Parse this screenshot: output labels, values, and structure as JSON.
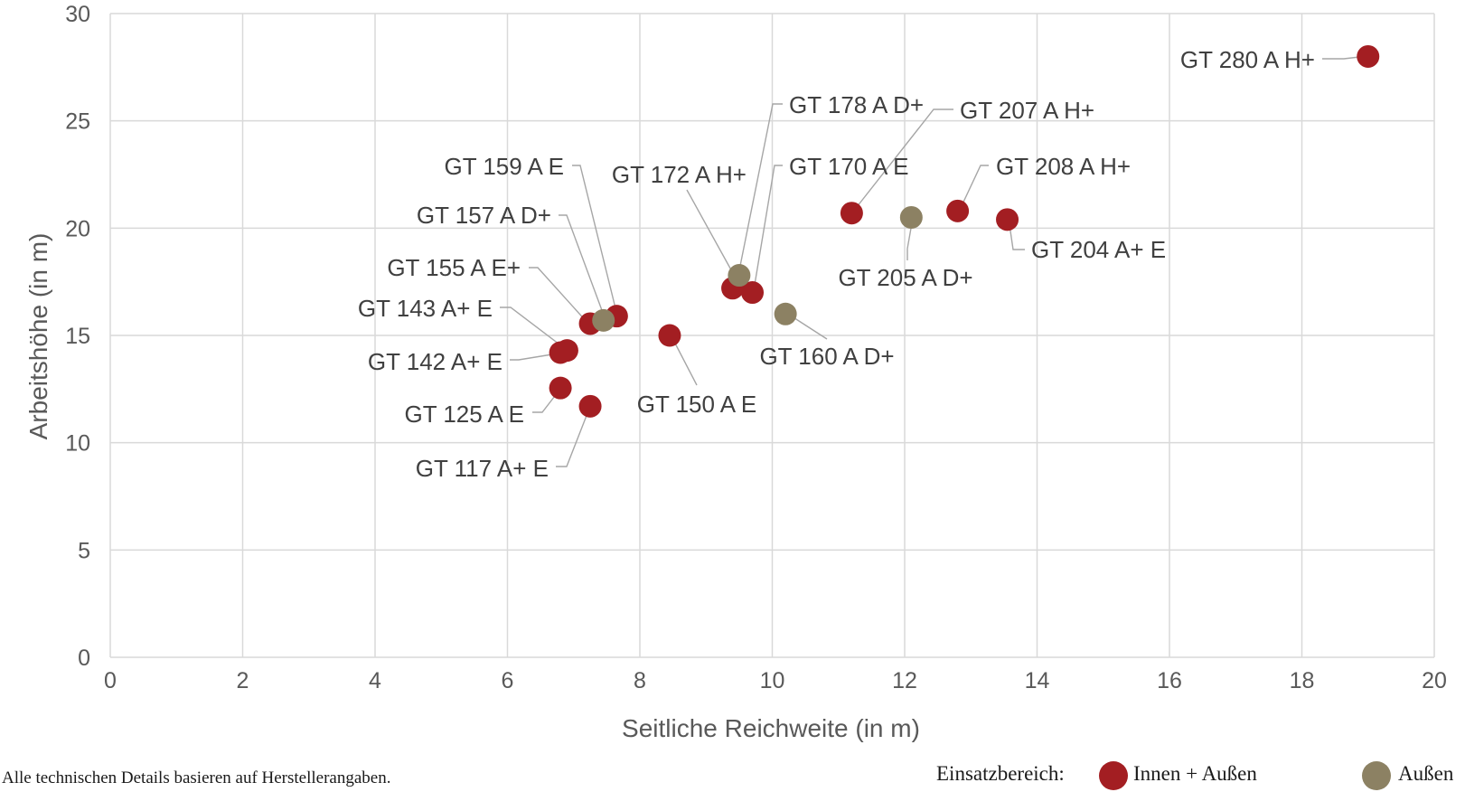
{
  "chart_data": {
    "type": "scatter",
    "xlabel": "Seitliche Reichweite (in m)",
    "ylabel": "Arbeitshöhe (in m)",
    "xlim": [
      0,
      20
    ],
    "ylim": [
      0,
      30
    ],
    "xticks": [
      0,
      2,
      4,
      6,
      8,
      10,
      12,
      14,
      16,
      18,
      20
    ],
    "yticks": [
      0,
      5,
      10,
      15,
      20,
      25,
      30
    ],
    "grid": true,
    "legend_position": "bottom-right",
    "series": [
      {
        "name": "Innen + Außen",
        "color": "#a31e22",
        "points": [
          {
            "label": "GT 280 A H+",
            "x": 19.0,
            "y": 28.0
          },
          {
            "label": "GT 207 A H+",
            "x": 11.2,
            "y": 20.7
          },
          {
            "label": "GT 208 A H+",
            "x": 12.8,
            "y": 20.8
          },
          {
            "label": "GT 204 A+ E",
            "x": 13.55,
            "y": 20.4
          },
          {
            "label": "GT 172 A H+",
            "x": 9.4,
            "y": 17.2
          },
          {
            "label": "GT 170 A E",
            "x": 9.7,
            "y": 17.0
          },
          {
            "label": "GT 159 A E",
            "x": 7.65,
            "y": 15.9
          },
          {
            "label": "GT 155 A E+",
            "x": 7.25,
            "y": 15.55
          },
          {
            "label": "GT 150 A E",
            "x": 8.45,
            "y": 15.0
          },
          {
            "label": "GT 143 A+ E",
            "x": 6.9,
            "y": 14.3
          },
          {
            "label": "GT 142 A+ E",
            "x": 6.8,
            "y": 14.2
          },
          {
            "label": "GT 125 A E",
            "x": 6.8,
            "y": 12.55
          },
          {
            "label": "GT 117 A+ E",
            "x": 7.25,
            "y": 11.7
          }
        ]
      },
      {
        "name": "Außen",
        "color": "#8c8163",
        "points": [
          {
            "label": "GT 178 A D+",
            "x": 9.5,
            "y": 17.8
          },
          {
            "label": "GT 160 A D+",
            "x": 10.2,
            "y": 16.0
          },
          {
            "label": "GT 205 A D+",
            "x": 12.1,
            "y": 20.5
          },
          {
            "label": "GT 157 A D+",
            "x": 7.45,
            "y": 15.7
          }
        ]
      }
    ]
  },
  "footer": {
    "note": "Alle technischen Details basieren auf Herstellerangaben.",
    "legend_title": "Einsatzbereich:",
    "legend_items": [
      "Innen + Außen",
      "Außen"
    ]
  }
}
